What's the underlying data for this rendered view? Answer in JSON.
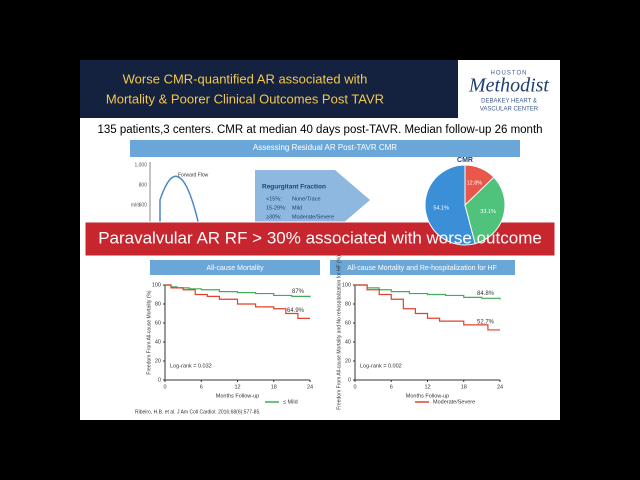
{
  "header": {
    "title_lines": [
      "Worse CMR-quantified AR associated with",
      "Mortality & Poorer Clinical Outcomes Post TAVR"
    ],
    "logo": [
      "HOUSTON",
      "Methodist",
      "DEBAKEY HEART &",
      "VASCULAR CENTER"
    ]
  },
  "subtitle": "135 patients,3 centers. CMR at median 40 days post-TAVR. Median follow-up 26 month",
  "figure": {
    "banner": "Assessing Residual AR Post-TAVR CMR",
    "flow": {
      "yticks": [
        "1,000",
        "800",
        "600"
      ],
      "ylabel": "ml/s",
      "annotation": "Forward Flow"
    },
    "rf": {
      "title": "Regurgitant Fraction",
      "items": [
        [
          "<15%:",
          "None/Trace"
        ],
        [
          "15-29%:",
          "Mild"
        ],
        [
          "≥30%:",
          "Moderate/Severe"
        ]
      ]
    },
    "pie": {
      "title": "CMR",
      "values": [
        54.1,
        33.1,
        12.8
      ],
      "value_labels": [
        "54.1%",
        "33.1%",
        "12.8%"
      ],
      "colors": [
        "#3b8fd6",
        "#4fc27c",
        "#e8574a"
      ]
    },
    "callout": "Paravalvular AR RF > 30% associated with worse outcome",
    "legend": [
      {
        "name": "≤ Mild",
        "color": "#3fae5a"
      },
      {
        "name": "Moderate/Severe",
        "color": "#e0402f"
      }
    ],
    "panels": [
      {
        "title": "All-cause Mortality",
        "ylabel": "Freedom From All-cause Mortality (%)",
        "xlabel": "Months Follow-up",
        "ylim": [
          0,
          100
        ],
        "yticks": [
          0,
          20,
          40,
          60,
          80,
          100
        ],
        "xlim": [
          0,
          24
        ],
        "xticks": [
          0,
          6,
          12,
          18,
          24
        ],
        "series": [
          {
            "x": [
              0,
              1,
              2,
              4,
              6,
              9,
              12,
              15,
              18,
              21,
              24
            ],
            "y": [
              100,
              98,
              97,
              96,
              95,
              93,
              92,
              91,
              89,
              88,
              87
            ]
          },
          {
            "x": [
              0,
              1,
              3,
              5,
              7,
              9,
              12,
              15,
              18,
              20,
              22,
              24
            ],
            "y": [
              100,
              97,
              95,
              90,
              88,
              85,
              80,
              77,
              75,
              70,
              64.9,
              64.9
            ]
          }
        ],
        "annotations": [
          "87%",
          "64.9%",
          "Log-rank = 0.032"
        ]
      },
      {
        "title": "All-cause Mortality and Re-hospitalization for HF",
        "ylabel": "Freedom From All-cause Mortality and No rehospitalization for HF (%)",
        "xlabel": "Months Follow-up",
        "ylim": [
          0,
          100
        ],
        "yticks": [
          0,
          20,
          40,
          60,
          80,
          100
        ],
        "xlim": [
          0,
          24
        ],
        "xticks": [
          0,
          6,
          12,
          18,
          24
        ],
        "series": [
          {
            "x": [
              0,
              2,
              4,
              6,
              9,
              12,
              15,
              18,
              21,
              24
            ],
            "y": [
              100,
              97,
              95,
              93,
              91,
              90,
              89,
              87,
              86,
              84.8
            ]
          },
          {
            "x": [
              0,
              2,
              4,
              6,
              8,
              10,
              12,
              14,
              18,
              22,
              24
            ],
            "y": [
              100,
              95,
              90,
              85,
              75,
              70,
              65,
              62,
              58,
              52.7,
              52.7
            ]
          }
        ],
        "annotations": [
          "84.8%",
          "52.7%",
          "Log-rank = 0.002"
        ]
      }
    ],
    "citation": "Ribeiro, H.B. et al. J Am Coll Cardiol. 2016;68(6):577-85."
  }
}
